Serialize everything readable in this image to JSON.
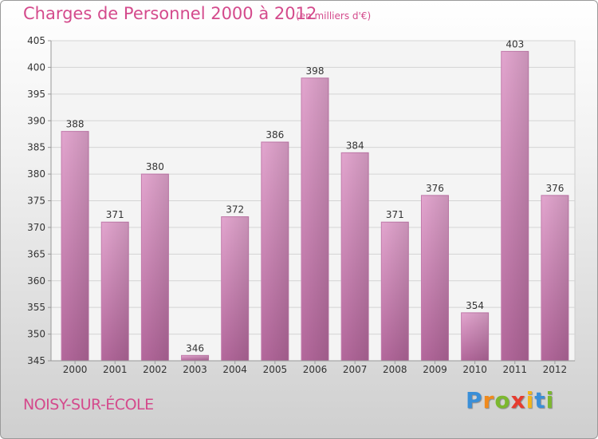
{
  "chart_data": {
    "type": "bar",
    "title": "Charges de Personnel 2000 à 2012",
    "subtitle": "(en milliers d'€)",
    "categories": [
      "2000",
      "2001",
      "2002",
      "2003",
      "2004",
      "2005",
      "2006",
      "2007",
      "2008",
      "2009",
      "2010",
      "2011",
      "2012"
    ],
    "values": [
      388,
      371,
      380,
      346,
      372,
      386,
      398,
      384,
      371,
      376,
      354,
      403,
      376
    ],
    "ylim": [
      345,
      405
    ],
    "yticks": [
      345,
      350,
      355,
      360,
      365,
      370,
      375,
      380,
      385,
      390,
      395,
      400,
      405
    ],
    "grid": true,
    "bar_color": "#d98cbd"
  },
  "location": "NOISY-SUR-ÉCOLE",
  "logo": {
    "letters": [
      "P",
      "r",
      "o",
      "x",
      "i",
      "t",
      "i"
    ],
    "colors": [
      "#3a8fd8",
      "#f08a1c",
      "#7cb82f",
      "#e63c2f",
      "#f2b51c",
      "#3a8fd8",
      "#7cb82f"
    ]
  }
}
